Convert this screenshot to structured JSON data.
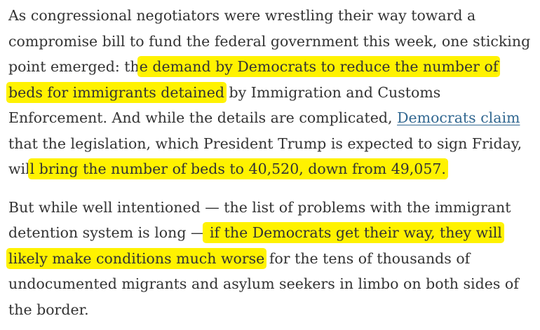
{
  "paragraph1": {
    "l1": "As congressional negotiators were wrestling their way toward a",
    "l2": "compromise bill to fund the federal government this week, one sticking",
    "l3_pre": "point emerged: th",
    "l3_hl": "e demand by Democrats to  reduce the number of",
    "l4_hl": "beds for immigrants detained",
    "l4_post": " by Immigration and Customs",
    "l5_pre": "Enforcement. And while the details are complicated, ",
    "l5_link": "Democrats claim",
    "l6": "that the  legislation, which President Trump is expected to sign Friday,",
    "l7_pre": "wil",
    "l7_hl": "l bring the number of beds to 40,520, down from 49,057."
  },
  "paragraph2": {
    "l1": "But while well intentioned — the list of problems with the immigrant",
    "l2_pre": "detention system is long —",
    "l2_hl": " if the Democrats get their way, they will",
    "l3_hl": "likely make conditions much worse",
    "l3_post": " for the tens of thousands of",
    "l4": "undocumented migrants and asylum seekers in limbo on both sides of",
    "l5": "the border."
  },
  "colors": {
    "text": "#333333",
    "highlight": "#fff200",
    "link": "#326891",
    "background": "#ffffff"
  }
}
